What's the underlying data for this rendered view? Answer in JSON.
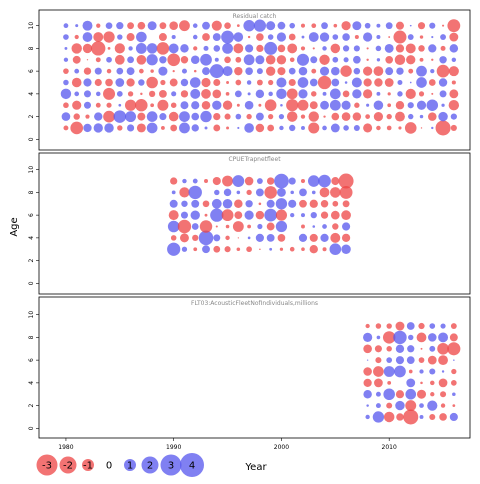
{
  "chart_data": {
    "type": "scatter",
    "subtype": "bubble-residual",
    "ylabel": "Age",
    "xlabel": "Year",
    "xlim": [
      1977.5,
      2017.5
    ],
    "x_ticks": [
      1980,
      1990,
      2000,
      2010
    ],
    "ylim": [
      -0.5,
      10.5
    ],
    "y_ticks": [
      0,
      2,
      4,
      6,
      8,
      10
    ],
    "colors": {
      "positive": "#5555ee",
      "negative": "#ee4444"
    },
    "legend": {
      "placement": "bottom-left",
      "items": [
        "-3",
        "-2",
        "-1",
        "0",
        "1",
        "2",
        "3",
        "4"
      ],
      "values": [
        -3,
        -2,
        -1,
        0,
        1,
        2,
        3,
        4
      ]
    },
    "panels": [
      {
        "title": "Residual catch",
        "years": [
          1980,
          2016
        ],
        "ages": [
          1,
          10
        ]
      },
      {
        "title": "CPUETrapnetfleet",
        "years": [
          1990,
          2006
        ],
        "ages": [
          3,
          9
        ]
      },
      {
        "title": "FLT03:AcousticFleetNofIndividuals,millions",
        "years": [
          2008,
          2016
        ],
        "ages": [
          1,
          9
        ]
      }
    ]
  }
}
